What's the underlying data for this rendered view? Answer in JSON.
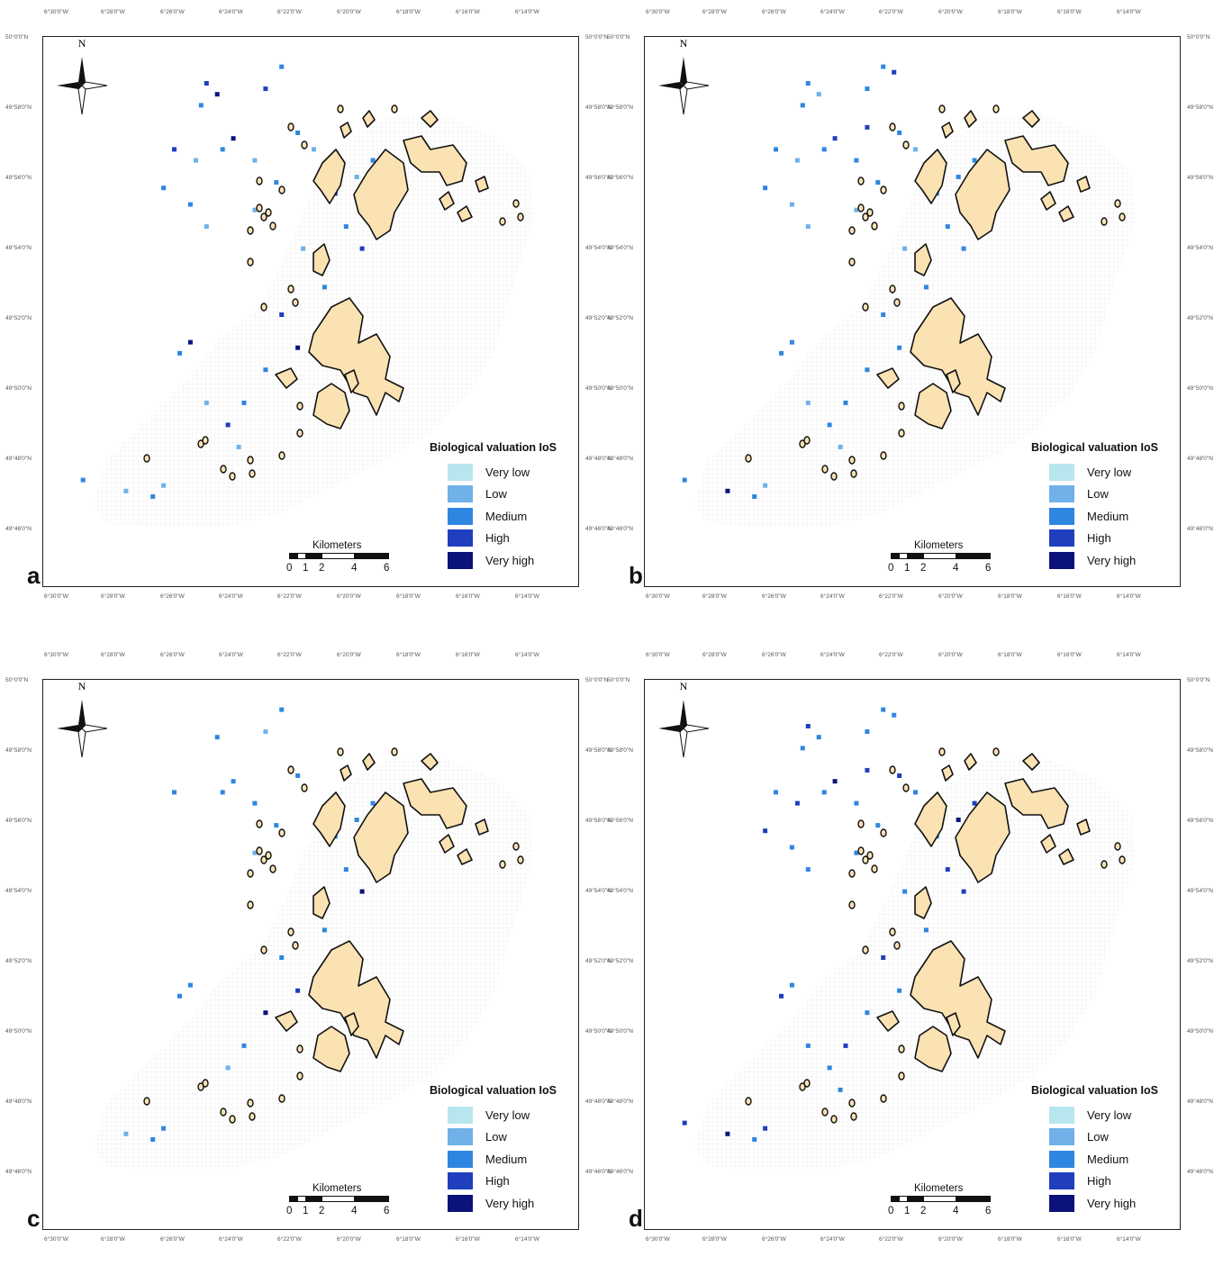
{
  "legend": {
    "title": "Biological valuation IoS",
    "classes": [
      {
        "label": "Very low",
        "color": "#b8e6ef"
      },
      {
        "label": "Low",
        "color": "#6fb1e8"
      },
      {
        "label": "Medium",
        "color": "#2f86e0"
      },
      {
        "label": "High",
        "color": "#1f3fbf"
      },
      {
        "label": "Very high",
        "color": "#0b137a"
      }
    ]
  },
  "scalebar": {
    "title": "Kilometers",
    "labels": [
      "0",
      "1",
      "2",
      "4",
      "6"
    ]
  },
  "north_label": "N",
  "lon_ticks": [
    "6°30'0\"W",
    "6°28'0\"W",
    "6°26'0\"W",
    "6°24'0\"W",
    "6°22'0\"W",
    "6°20'0\"W",
    "6°18'0\"W",
    "6°16'0\"W",
    "6°14'0\"W"
  ],
  "lat_ticks": [
    "50°0'0\"N",
    "49°58'0\"N",
    "49°56'0\"N",
    "49°54'0\"N",
    "49°52'0\"N",
    "49°50'0\"N",
    "49°48'0\"N",
    "49°46'0\"N"
  ],
  "colors": {
    "land": "#fae2b2",
    "grid": "#e4e4e4",
    "frame": "#222222"
  },
  "panels": [
    {
      "letter": "a",
      "cells": [
        [
          0.3,
          0.08,
          3
        ],
        [
          0.32,
          0.1,
          4
        ],
        [
          0.29,
          0.12,
          2
        ],
        [
          0.44,
          0.05,
          2
        ],
        [
          0.41,
          0.09,
          3
        ],
        [
          0.35,
          0.18,
          4
        ],
        [
          0.33,
          0.2,
          2
        ],
        [
          0.28,
          0.22,
          1
        ],
        [
          0.24,
          0.2,
          3
        ],
        [
          0.22,
          0.27,
          2
        ],
        [
          0.27,
          0.3,
          2
        ],
        [
          0.3,
          0.34,
          1
        ],
        [
          0.39,
          0.22,
          1
        ],
        [
          0.47,
          0.17,
          2
        ],
        [
          0.52,
          0.24,
          2
        ],
        [
          0.54,
          0.28,
          3
        ],
        [
          0.58,
          0.25,
          1
        ],
        [
          0.61,
          0.22,
          2
        ],
        [
          0.56,
          0.34,
          2
        ],
        [
          0.59,
          0.38,
          3
        ],
        [
          0.48,
          0.38,
          1
        ],
        [
          0.52,
          0.45,
          2
        ],
        [
          0.56,
          0.48,
          2
        ],
        [
          0.44,
          0.5,
          3
        ],
        [
          0.47,
          0.56,
          4
        ],
        [
          0.41,
          0.6,
          2
        ],
        [
          0.37,
          0.66,
          2
        ],
        [
          0.34,
          0.7,
          3
        ],
        [
          0.3,
          0.66,
          1
        ],
        [
          0.36,
          0.74,
          1
        ],
        [
          0.27,
          0.55,
          4
        ],
        [
          0.25,
          0.57,
          2
        ],
        [
          0.22,
          0.81,
          1
        ],
        [
          0.2,
          0.83,
          2
        ],
        [
          0.15,
          0.82,
          1
        ],
        [
          0.07,
          0.8,
          2
        ],
        [
          0.39,
          0.31,
          1
        ],
        [
          0.43,
          0.26,
          2
        ],
        [
          0.5,
          0.2,
          1
        ]
      ]
    },
    {
      "letter": "b",
      "cells": [
        [
          0.3,
          0.08,
          2
        ],
        [
          0.32,
          0.1,
          1
        ],
        [
          0.29,
          0.12,
          2
        ],
        [
          0.44,
          0.05,
          2
        ],
        [
          0.41,
          0.09,
          2
        ],
        [
          0.35,
          0.18,
          3
        ],
        [
          0.33,
          0.2,
          2
        ],
        [
          0.28,
          0.22,
          1
        ],
        [
          0.24,
          0.2,
          2
        ],
        [
          0.22,
          0.27,
          2
        ],
        [
          0.27,
          0.3,
          1
        ],
        [
          0.3,
          0.34,
          1
        ],
        [
          0.39,
          0.22,
          2
        ],
        [
          0.47,
          0.17,
          2
        ],
        [
          0.52,
          0.24,
          1
        ],
        [
          0.54,
          0.28,
          2
        ],
        [
          0.58,
          0.25,
          2
        ],
        [
          0.61,
          0.22,
          2
        ],
        [
          0.56,
          0.34,
          2
        ],
        [
          0.59,
          0.38,
          2
        ],
        [
          0.48,
          0.38,
          1
        ],
        [
          0.52,
          0.45,
          2
        ],
        [
          0.56,
          0.48,
          2
        ],
        [
          0.44,
          0.5,
          2
        ],
        [
          0.47,
          0.56,
          2
        ],
        [
          0.41,
          0.6,
          2
        ],
        [
          0.37,
          0.66,
          2
        ],
        [
          0.34,
          0.7,
          2
        ],
        [
          0.3,
          0.66,
          1
        ],
        [
          0.36,
          0.74,
          1
        ],
        [
          0.27,
          0.55,
          2
        ],
        [
          0.25,
          0.57,
          2
        ],
        [
          0.22,
          0.81,
          1
        ],
        [
          0.2,
          0.83,
          2
        ],
        [
          0.15,
          0.82,
          4
        ],
        [
          0.07,
          0.8,
          2
        ],
        [
          0.39,
          0.31,
          1
        ],
        [
          0.43,
          0.26,
          2
        ],
        [
          0.5,
          0.2,
          1
        ],
        [
          0.46,
          0.06,
          3
        ],
        [
          0.41,
          0.16,
          3
        ]
      ]
    },
    {
      "letter": "c",
      "cells": [
        [
          0.32,
          0.1,
          2
        ],
        [
          0.44,
          0.05,
          2
        ],
        [
          0.41,
          0.09,
          1
        ],
        [
          0.35,
          0.18,
          2
        ],
        [
          0.33,
          0.2,
          2
        ],
        [
          0.24,
          0.2,
          2
        ],
        [
          0.39,
          0.22,
          2
        ],
        [
          0.47,
          0.17,
          2
        ],
        [
          0.54,
          0.28,
          2
        ],
        [
          0.58,
          0.25,
          2
        ],
        [
          0.61,
          0.22,
          2
        ],
        [
          0.56,
          0.34,
          2
        ],
        [
          0.59,
          0.38,
          4
        ],
        [
          0.52,
          0.45,
          2
        ],
        [
          0.56,
          0.48,
          3
        ],
        [
          0.44,
          0.5,
          2
        ],
        [
          0.47,
          0.56,
          3
        ],
        [
          0.41,
          0.6,
          4
        ],
        [
          0.37,
          0.66,
          2
        ],
        [
          0.34,
          0.7,
          1
        ],
        [
          0.27,
          0.55,
          2
        ],
        [
          0.25,
          0.57,
          2
        ],
        [
          0.22,
          0.81,
          2
        ],
        [
          0.2,
          0.83,
          2
        ],
        [
          0.15,
          0.82,
          1
        ],
        [
          0.39,
          0.31,
          1
        ],
        [
          0.43,
          0.26,
          2
        ]
      ]
    },
    {
      "letter": "d",
      "cells": [
        [
          0.3,
          0.08,
          3
        ],
        [
          0.32,
          0.1,
          2
        ],
        [
          0.29,
          0.12,
          2
        ],
        [
          0.44,
          0.05,
          2
        ],
        [
          0.41,
          0.09,
          2
        ],
        [
          0.35,
          0.18,
          4
        ],
        [
          0.33,
          0.2,
          2
        ],
        [
          0.28,
          0.22,
          3
        ],
        [
          0.24,
          0.2,
          2
        ],
        [
          0.22,
          0.27,
          3
        ],
        [
          0.27,
          0.3,
          2
        ],
        [
          0.3,
          0.34,
          2
        ],
        [
          0.39,
          0.22,
          2
        ],
        [
          0.47,
          0.17,
          3
        ],
        [
          0.52,
          0.24,
          2
        ],
        [
          0.54,
          0.28,
          2
        ],
        [
          0.58,
          0.25,
          4
        ],
        [
          0.61,
          0.22,
          3
        ],
        [
          0.56,
          0.34,
          3
        ],
        [
          0.59,
          0.38,
          3
        ],
        [
          0.48,
          0.38,
          2
        ],
        [
          0.52,
          0.45,
          2
        ],
        [
          0.56,
          0.48,
          3
        ],
        [
          0.44,
          0.5,
          3
        ],
        [
          0.47,
          0.56,
          2
        ],
        [
          0.41,
          0.6,
          2
        ],
        [
          0.37,
          0.66,
          3
        ],
        [
          0.34,
          0.7,
          2
        ],
        [
          0.3,
          0.66,
          2
        ],
        [
          0.36,
          0.74,
          2
        ],
        [
          0.27,
          0.55,
          2
        ],
        [
          0.25,
          0.57,
          3
        ],
        [
          0.22,
          0.81,
          3
        ],
        [
          0.2,
          0.83,
          2
        ],
        [
          0.15,
          0.82,
          4
        ],
        [
          0.07,
          0.8,
          3
        ],
        [
          0.39,
          0.31,
          2
        ],
        [
          0.43,
          0.26,
          2
        ],
        [
          0.5,
          0.2,
          2
        ],
        [
          0.46,
          0.06,
          2
        ],
        [
          0.41,
          0.16,
          3
        ]
      ]
    }
  ]
}
